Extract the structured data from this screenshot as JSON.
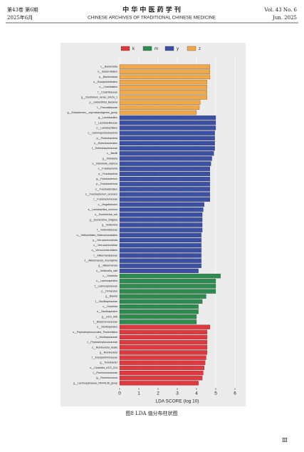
{
  "header": {
    "volume_cn": "第43卷 第6期",
    "date_cn": "2025年6月",
    "journal_cn": "中 华 中 医 药 学 刊",
    "journal_en": "CHINESE ARCHIVES OF TRADITIONAL CHINESE MEDICINE",
    "volume_en": "Vol. 43 No. 6",
    "date_en": "Jun. 2025"
  },
  "chart_data": {
    "type": "bar",
    "orientation": "horizontal",
    "xlabel": "LDA SCORE (log 10)",
    "xlim": [
      0,
      6.5
    ],
    "xticks": [
      0,
      1,
      2,
      3,
      4,
      5,
      6
    ],
    "grid": true,
    "legend": "top",
    "series": [
      {
        "name": "k",
        "color": "#e0383f",
        "categories": [
          "o__Oscillospirales",
          "s__Peptostreptococcales_Tissierellales",
          "f__Muribaculaceae",
          "f__Peptostreptococcaceae",
          "s__Romboutsia_ilealis",
          "g__Romboutsia",
          "f__Erysipelotrichaceae",
          "g__Turicibacter",
          "o__Clostridia_UCG_014",
          "f__Ruminococcaceae",
          "g__Ruminococcus",
          "g__Lachnospiraceae_NK4A136_group"
        ],
        "values": [
          4.7,
          4.55,
          4.55,
          4.55,
          4.55,
          4.55,
          4.5,
          4.45,
          4.4,
          4.35,
          4.3,
          4.1
        ]
      },
      {
        "name": "m",
        "color": "#2e8b4f",
        "categories": [
          "c__Clostridia",
          "o__Lachnospirales",
          "f__Lachnospiraceae",
          "p__Firmicutes",
          "g__Blautia",
          "f__Oscillospiraceae",
          "c__Clostridia",
          "o__Oscillospirales",
          "g__UCG_005",
          "f__Butyricicoccaceae"
        ],
        "values": [
          5.25,
          5.0,
          5.0,
          5.0,
          4.5,
          4.3,
          4.1,
          4.1,
          4.0,
          4.0
        ]
      },
      {
        "name": "y",
        "color": "#3b4fa3",
        "categories": [
          "g__Lactobacillus",
          "f__Lactobacillaceae",
          "o__Lactobacillales",
          "c__Gammaproteobacteria",
          "p__Proteobacteria",
          "o__Enterobacterales",
          "f__Enterobacteriaceae",
          "c__Bacilli",
          "g__Klebsiella",
          "s__Klebsiella_oxytoca",
          "c__Fusobacteriia",
          "p__Fusobacteria",
          "g__Fusobacterium",
          "p__Fusobacteriota",
          "o__Fusobacteriales",
          "s__Fusobacterium_ulcerans",
          "f__Fusobacteriaceae",
          "c__Negativicutes",
          "s__Lactobacillus_murinus",
          "s__Escherichia_coli",
          "g__Escherichia_Shigella",
          "g__Veillonella",
          "f__Veillonellaceae",
          "o__Veillonellales_Selenomonadales",
          "p__Verrucomicrobiota",
          "c__Verrucomicrobiae",
          "o__Verrucomicrobiales",
          "f__Akkermansiaceae",
          "s__Akkermansia_muciniphila",
          "g__Akkermansia",
          "s__Veillonella_ratti"
        ],
        "values": [
          5.0,
          5.0,
          5.0,
          4.95,
          4.95,
          4.95,
          4.95,
          4.9,
          4.8,
          4.75,
          4.7,
          4.7,
          4.7,
          4.7,
          4.7,
          4.7,
          4.7,
          4.4,
          4.35,
          4.3,
          4.3,
          4.3,
          4.3,
          4.25,
          4.25,
          4.25,
          4.25,
          4.25,
          4.25,
          4.25,
          4.1
        ]
      },
      {
        "name": "z",
        "color": "#f0a848",
        "categories": [
          "c__Bacteroidia",
          "o__Bacteroidales",
          "p__Bacteroidota",
          "o__Erysipelotrichales",
          "o__Clostridiales",
          "f__Clostridiaceae",
          "g__Clostridium_sensu_stricto_1",
          "p__unidentified_Bacteria",
          "f__Prevotellaceae",
          "g__Eubacterium__coprostanoligenes_group"
        ],
        "values": [
          4.7,
          4.7,
          4.7,
          4.55,
          4.55,
          4.55,
          4.55,
          4.2,
          4.15,
          4.0
        ]
      }
    ]
  },
  "caption": "图8 LDA 值分布柱状图",
  "page_number": "Ⅲ"
}
